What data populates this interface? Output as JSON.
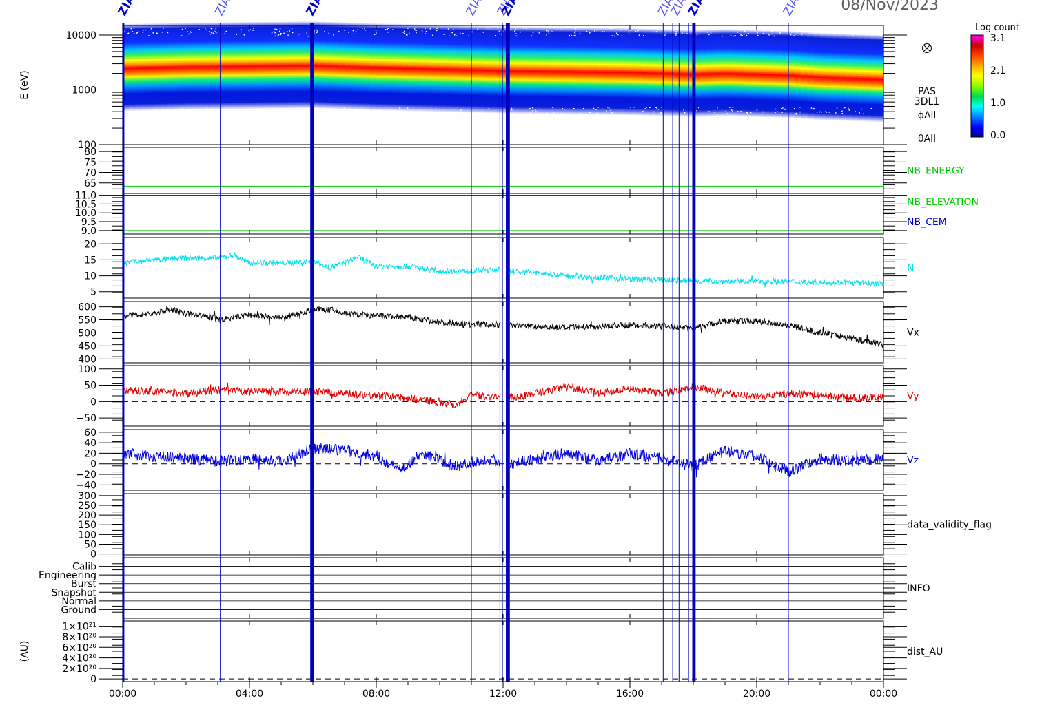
{
  "header": {
    "date": "08/Nov/2023"
  },
  "markers": {
    "label": "ZIAS",
    "hours": [
      0.02,
      3.08,
      5.95,
      6.0,
      11.0,
      11.9,
      11.98,
      12.12,
      12.18,
      17.05,
      17.35,
      17.55,
      17.85,
      18.0,
      18.04,
      21.0
    ],
    "bold_hours": [
      0.02,
      5.95,
      6.0,
      12.12,
      12.18,
      18.0,
      18.04
    ],
    "label_hours": [
      0.02,
      3.08,
      5.95,
      11.0,
      11.98,
      12.12,
      17.05,
      17.45,
      18.0,
      21.0
    ]
  },
  "colorbar": {
    "title": "Log count",
    "ticks": [
      "3.1",
      "2.1",
      "1.0",
      "0.0"
    ],
    "stops": [
      "#ff00ff",
      "#cc0000",
      "#ff4400",
      "#ffaa00",
      "#ffff00",
      "#88ff00",
      "#00dd44",
      "#00ffff",
      "#0088ff",
      "#0000ff",
      "#000090"
    ]
  },
  "chart_data": {
    "type": "line",
    "x_axis": {
      "range_hours": [
        0,
        24
      ],
      "ticks": [
        {
          "h": 0,
          "label": "00:00"
        },
        {
          "h": 4,
          "label": "04:00"
        },
        {
          "h": 8,
          "label": "08:00"
        },
        {
          "h": 12,
          "label": "12:00"
        },
        {
          "h": 16,
          "label": "16:00"
        },
        {
          "h": 20,
          "label": "20:00"
        },
        {
          "h": 24,
          "label": "00:00"
        }
      ]
    },
    "panels": [
      {
        "id": "spectrogram",
        "type": "heatmap",
        "ylabel": "E (eV)",
        "scale": "log",
        "ylim": [
          100,
          15000
        ],
        "yticks": [
          {
            "v": 10000,
            "label": "10000"
          },
          {
            "v": 1000,
            "label": "1000"
          },
          {
            "v": 100,
            "label": "100"
          }
        ],
        "right_labels": [
          "PAS",
          "3DL1",
          "ϕAll",
          "θAll"
        ],
        "band_center_eV": [
          1600,
          1700,
          1800,
          1650,
          1550,
          1500,
          1450,
          1400,
          1350,
          1300,
          1250,
          1300,
          1200,
          1100,
          1000
        ],
        "band_hours": [
          0,
          2,
          6,
          8,
          10,
          11,
          12,
          14,
          16,
          17,
          18,
          19,
          21,
          22,
          24
        ]
      },
      {
        "id": "nb_energy",
        "ylim": [
          60,
          82
        ],
        "yticks": [
          {
            "v": 80,
            "label": "80"
          },
          {
            "v": 75,
            "label": "75"
          },
          {
            "v": 70,
            "label": "70"
          },
          {
            "v": 65,
            "label": "65"
          }
        ],
        "lines": [
          {
            "value": 63.5,
            "color": "#00cc00"
          }
        ],
        "series_label": "NB_ENERGY",
        "label_color": "#00cc00"
      },
      {
        "id": "nb_elev",
        "ylim": [
          8.8,
          11.1
        ],
        "yticks": [
          {
            "v": 11.0,
            "label": "11.0"
          },
          {
            "v": 10.5,
            "label": "10.5"
          },
          {
            "v": 10.0,
            "label": "10.0"
          },
          {
            "v": 9.5,
            "label": "9.5"
          },
          {
            "v": 9.0,
            "label": "9.0"
          }
        ],
        "lines": [
          {
            "value": 11.0,
            "color": "#0000cc"
          },
          {
            "value": 9.0,
            "color": "#00cc00"
          }
        ],
        "series_labels": [
          {
            "text": "NB_ELEVATION",
            "color": "#00cc00"
          },
          {
            "text": "NB_CEM",
            "color": "#0000cc"
          }
        ]
      },
      {
        "id": "n",
        "ylim": [
          3,
          22
        ],
        "yticks": [
          {
            "v": 20,
            "label": "20"
          },
          {
            "v": 15,
            "label": "15"
          },
          {
            "v": 10,
            "label": "10"
          },
          {
            "v": 5,
            "label": "5"
          }
        ],
        "series_label": "N",
        "color": "#00e0f0",
        "x": [
          0,
          1,
          2,
          3,
          3.5,
          4,
          5,
          6,
          6.5,
          7,
          7.4,
          8,
          9,
          10,
          11,
          11.9,
          12.2,
          13,
          14,
          15,
          16,
          17,
          18,
          19,
          20,
          21,
          22,
          23,
          24
        ],
        "y": [
          14,
          15,
          15.5,
          15.5,
          16.5,
          14,
          14,
          14.5,
          12.5,
          14,
          16,
          13,
          13,
          11.5,
          11.5,
          12,
          11.5,
          11,
          10,
          9.5,
          9,
          8.7,
          8.4,
          8.3,
          8.3,
          8.2,
          8.0,
          7.8,
          7.5
        ],
        "noise": 0.9
      },
      {
        "id": "vx",
        "ylim": [
          385,
          620
        ],
        "yticks": [
          {
            "v": 600,
            "label": "600"
          },
          {
            "v": 550,
            "label": "550"
          },
          {
            "v": 500,
            "label": "500"
          },
          {
            "v": 450,
            "label": "450"
          },
          {
            "v": 400,
            "label": "400"
          }
        ],
        "series_label": "Vx",
        "color": "#000000",
        "x": [
          0,
          1,
          1.5,
          2,
          3,
          3.1,
          4,
          5,
          6,
          6.5,
          7,
          8,
          9,
          10,
          11,
          11.9,
          12.2,
          13,
          14,
          15,
          16,
          17,
          18,
          19,
          20,
          21,
          22,
          23,
          24
        ],
        "y": [
          565,
          575,
          590,
          575,
          555,
          550,
          570,
          555,
          590,
          590,
          575,
          565,
          560,
          540,
          535,
          530,
          530,
          525,
          520,
          525,
          530,
          525,
          520,
          545,
          545,
          530,
          500,
          480,
          455
        ],
        "noise": 12
      },
      {
        "id": "vy",
        "ylim": [
          -75,
          110
        ],
        "yticks": [
          {
            "v": 100,
            "label": "100"
          },
          {
            "v": 50,
            "label": "50"
          },
          {
            "v": 0,
            "label": "0"
          },
          {
            "v": -50,
            "label": "−50"
          }
        ],
        "zero_line": 0,
        "series_label": "Vy",
        "color": "#dd0000",
        "x": [
          0,
          1,
          2,
          3,
          4,
          5,
          6,
          7,
          8,
          9,
          10,
          10.5,
          11,
          11.9,
          12.2,
          13,
          14,
          15,
          16,
          17,
          18,
          19,
          20,
          21,
          22,
          23,
          24
        ],
        "y": [
          35,
          30,
          25,
          35,
          30,
          30,
          30,
          25,
          20,
          10,
          0,
          -10,
          20,
          15,
          10,
          25,
          45,
          25,
          40,
          25,
          45,
          25,
          15,
          25,
          20,
          10,
          15
        ],
        "noise": 12
      },
      {
        "id": "vz",
        "ylim": [
          -50,
          65
        ],
        "yticks": [
          {
            "v": 60,
            "label": "60"
          },
          {
            "v": 40,
            "label": "40"
          },
          {
            "v": 20,
            "label": "20"
          },
          {
            "v": 0,
            "label": "0"
          },
          {
            "v": -20,
            "label": "−20"
          },
          {
            "v": -40,
            "label": "−40"
          }
        ],
        "zero_line": 0,
        "series_label": "Vz",
        "color": "#0000dd",
        "x": [
          0,
          1,
          2,
          3,
          4,
          5,
          6,
          7,
          8,
          8.7,
          9.5,
          10.5,
          11.5,
          12.2,
          13,
          14,
          15,
          16,
          17,
          18,
          19,
          20,
          21,
          22,
          23,
          24
        ],
        "y": [
          20,
          15,
          10,
          5,
          10,
          5,
          30,
          25,
          15,
          -10,
          20,
          -5,
          10,
          0,
          10,
          20,
          5,
          20,
          10,
          -5,
          25,
          15,
          -15,
          10,
          5,
          10
        ],
        "noise": 11
      },
      {
        "id": "dvf",
        "ylim": [
          -5,
          310
        ],
        "yticks": [
          {
            "v": 300,
            "label": "300"
          },
          {
            "v": 250,
            "label": "250"
          },
          {
            "v": 200,
            "label": "200"
          },
          {
            "v": 150,
            "label": "150"
          },
          {
            "v": 100,
            "label": "100"
          },
          {
            "v": 50,
            "label": "50"
          },
          {
            "v": 0,
            "label": "0"
          }
        ],
        "series_label": "data_validity_flag",
        "label_color": "#000000"
      },
      {
        "id": "info",
        "ylim": [
          0,
          7
        ],
        "yticks": [
          {
            "v": 6,
            "label": "Calib"
          },
          {
            "v": 5,
            "label": "Engineering"
          },
          {
            "v": 4,
            "label": "Burst"
          },
          {
            "v": 3,
            "label": "Snapshot"
          },
          {
            "v": 2,
            "label": "Normal"
          },
          {
            "v": 1,
            "label": "Ground"
          }
        ],
        "series_label": "INFO",
        "label_color": "#000000"
      },
      {
        "id": "au",
        "ylabel": "(AU)",
        "ylim": [
          -5e+19,
          1.1e+21
        ],
        "yticks": [
          {
            "v": 1e+21,
            "label": "1×10²¹"
          },
          {
            "v": 8e+20,
            "label": "8×10²⁰"
          },
          {
            "v": 6e+20,
            "label": "6×10²⁰"
          },
          {
            "v": 4e+20,
            "label": "4×10²⁰"
          },
          {
            "v": 2e+20,
            "label": "2×10²⁰"
          },
          {
            "v": 0,
            "label": "0"
          }
        ],
        "zero_line": 0,
        "series_label": "dist_AU",
        "label_color": "#000000"
      }
    ]
  }
}
